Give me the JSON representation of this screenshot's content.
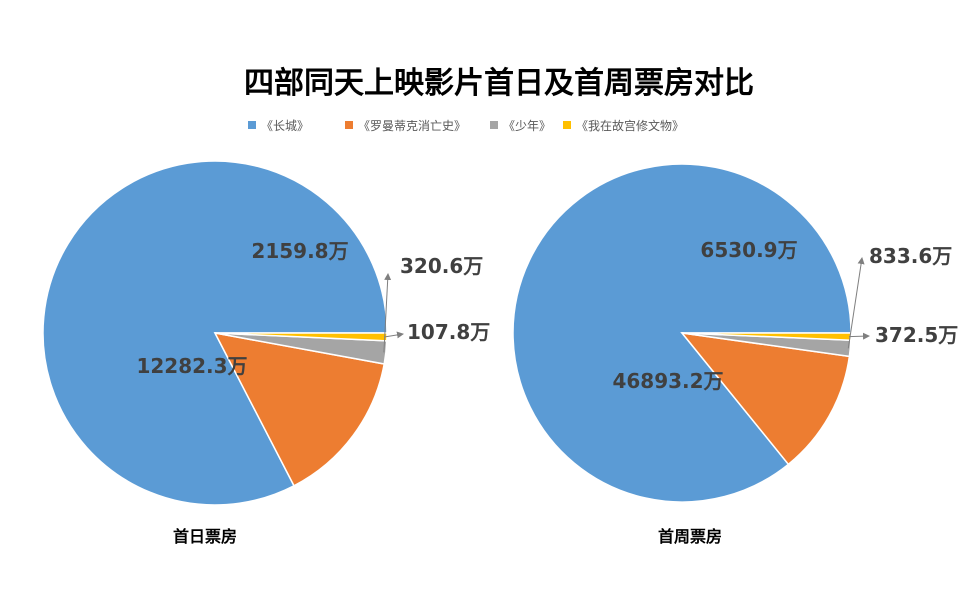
{
  "chart_data": {
    "title": "四部同天上映影片首日及首周票房对比",
    "type": "pie",
    "legend_position": "top",
    "categories": [
      "《长城》",
      "《罗曼蒂克消亡史》",
      "《少年》",
      "《我在故宫修文物》"
    ],
    "colors": [
      "#5b9bd5",
      "#ed7d31",
      "#a5a5a5",
      "#ffc000"
    ],
    "series": [
      {
        "name": "首日票房",
        "values": [
          12282.3,
          2159.8,
          320.6,
          107.8
        ],
        "labels": [
          "12282.3万",
          "2159.8万",
          "320.6万",
          "107.8万"
        ]
      },
      {
        "name": "首周票房",
        "values": [
          46893.2,
          6530.9,
          833.6,
          372.5
        ],
        "labels": [
          "46893.2万",
          "6530.9万",
          "833.6万",
          "372.5万"
        ]
      }
    ]
  }
}
